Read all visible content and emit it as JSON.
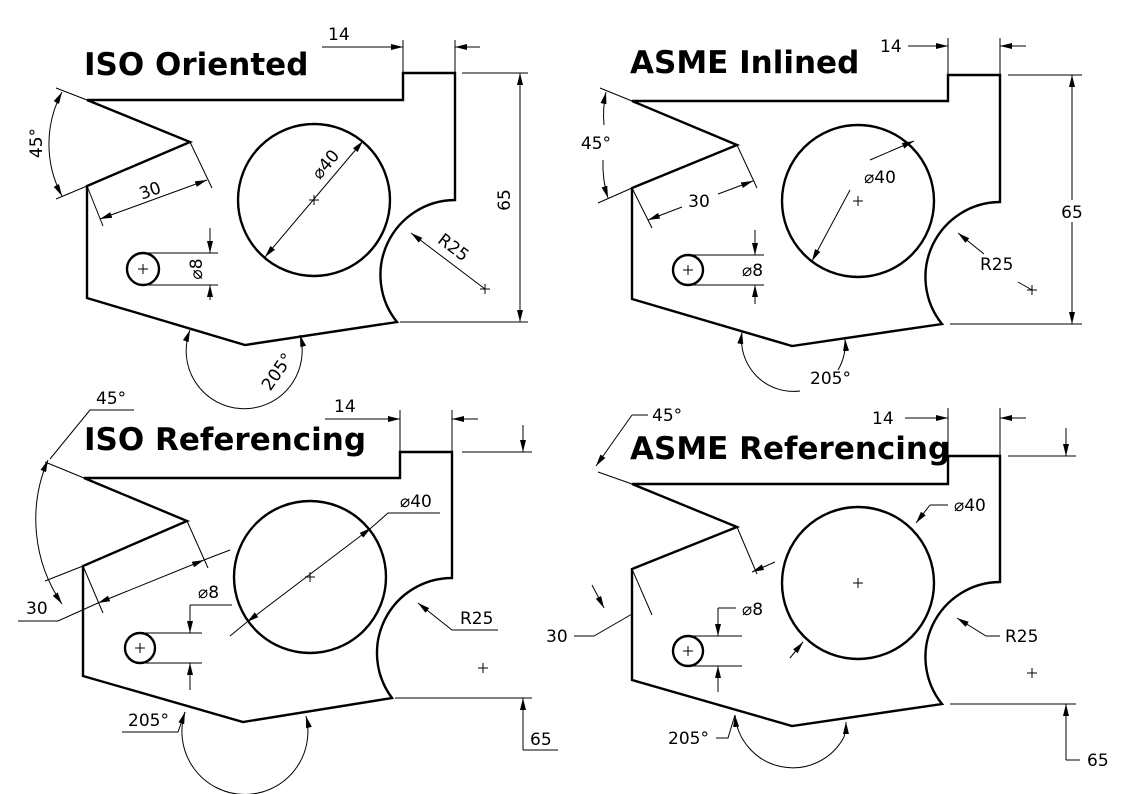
{
  "panels": [
    {
      "title": "ISO Oriented",
      "dims": {
        "d14": "14",
        "d65": "65",
        "d45": "45°",
        "d30": "30",
        "d40": "⌀40",
        "d8": "⌀8",
        "r25": "R25",
        "d205": "205°"
      }
    },
    {
      "title": "ASME Inlined",
      "dims": {
        "d14": "14",
        "d65": "65",
        "d45": "45°",
        "d30": "30",
        "d40": "⌀40",
        "d8": "⌀8",
        "r25": "R25",
        "d205": "205°"
      }
    },
    {
      "title": "ISO Referencing",
      "dims": {
        "d14": "14",
        "d65": "65",
        "d45": "45°",
        "d30": "30",
        "d40": "⌀40",
        "d8": "⌀8",
        "r25": "R25",
        "d205": "205°"
      }
    },
    {
      "title": "ASME Referencing",
      "dims": {
        "d14": "14",
        "d65": "65",
        "d45": "45°",
        "d30": "30",
        "d40": "⌀40",
        "d8": "⌀8",
        "r25": "R25",
        "d205": "205°"
      }
    }
  ],
  "icons": {
    "center_mark": "plus-center-mark",
    "arrowhead": "filled-arrowhead"
  }
}
